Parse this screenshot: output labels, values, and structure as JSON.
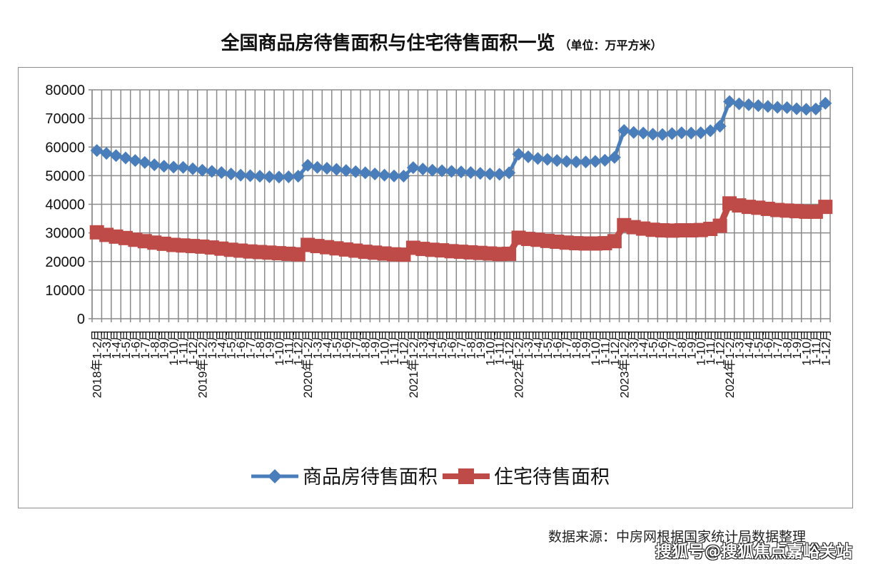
{
  "title": "全国商品房待售面积与住宅待售面积一览",
  "unit": "（单位：万平方米）",
  "source": "数据来源：中房网根据国家统计局数据整理",
  "watermark": "搜狐号@搜狐焦点嘉峪关站",
  "chart_data": {
    "type": "line",
    "title": "全国商品房待售面积与住宅待售面积一览",
    "subtitle": "（单位：万平方米）",
    "xlabel": "",
    "ylabel": "",
    "ylim": [
      0,
      80000
    ],
    "yticks": [
      0,
      10000,
      20000,
      30000,
      40000,
      50000,
      60000,
      70000,
      80000
    ],
    "grid": true,
    "legend": "bottom",
    "years": [
      "2018年",
      "2019年",
      "2020年",
      "2021年",
      "2022年",
      "2023年",
      "2024年"
    ],
    "months": [
      "1-2月",
      "1-3月",
      "1-4月",
      "1-5月",
      "1-6月",
      "1-7月",
      "1-8月",
      "1-9月",
      "1-10月",
      "1-11月",
      "1-12月"
    ],
    "series": [
      {
        "name": "商品房待售面积",
        "color": "#4a7ebb",
        "marker": "diamond",
        "values": [
          58800,
          57800,
          57000,
          56200,
          55300,
          54600,
          53800,
          53300,
          53000,
          52900,
          52400,
          51900,
          51500,
          51100,
          50600,
          50200,
          50000,
          49800,
          49600,
          49500,
          49600,
          49800,
          53600,
          52900,
          52600,
          52200,
          51800,
          51400,
          51000,
          50600,
          50200,
          49900,
          49850,
          52800,
          52300,
          51900,
          51700,
          51500,
          51300,
          51100,
          50800,
          50600,
          50500,
          51000,
          57500,
          56600,
          56000,
          55700,
          55300,
          55000,
          54800,
          54800,
          55000,
          55400,
          56400,
          65800,
          65100,
          64900,
          64500,
          64400,
          64700,
          65000,
          64900,
          65000,
          65700,
          67300,
          75900,
          75100,
          74800,
          74500,
          74200,
          73900,
          73800,
          73400,
          73200,
          73300,
          75300
        ]
      },
      {
        "name": "住宅待售面积",
        "color": "#be4b48",
        "marker": "square",
        "values": [
          30200,
          29300,
          28700,
          28200,
          27600,
          27100,
          26600,
          26200,
          25800,
          25600,
          25400,
          25200,
          24900,
          24500,
          24100,
          23800,
          23500,
          23300,
          23100,
          22900,
          22700,
          22500,
          25800,
          25400,
          25000,
          24600,
          24200,
          23800,
          23400,
          23100,
          22800,
          22500,
          22400,
          24800,
          24400,
          24100,
          23900,
          23600,
          23400,
          23200,
          23000,
          22800,
          22600,
          22700,
          28300,
          27900,
          27600,
          27200,
          26900,
          26600,
          26400,
          26300,
          26300,
          26400,
          27100,
          32700,
          32000,
          31500,
          31100,
          30900,
          30800,
          30900,
          30900,
          31000,
          31400,
          32500,
          40300,
          39600,
          39100,
          38800,
          38400,
          38000,
          37800,
          37600,
          37400,
          37400,
          39100
        ]
      }
    ]
  }
}
